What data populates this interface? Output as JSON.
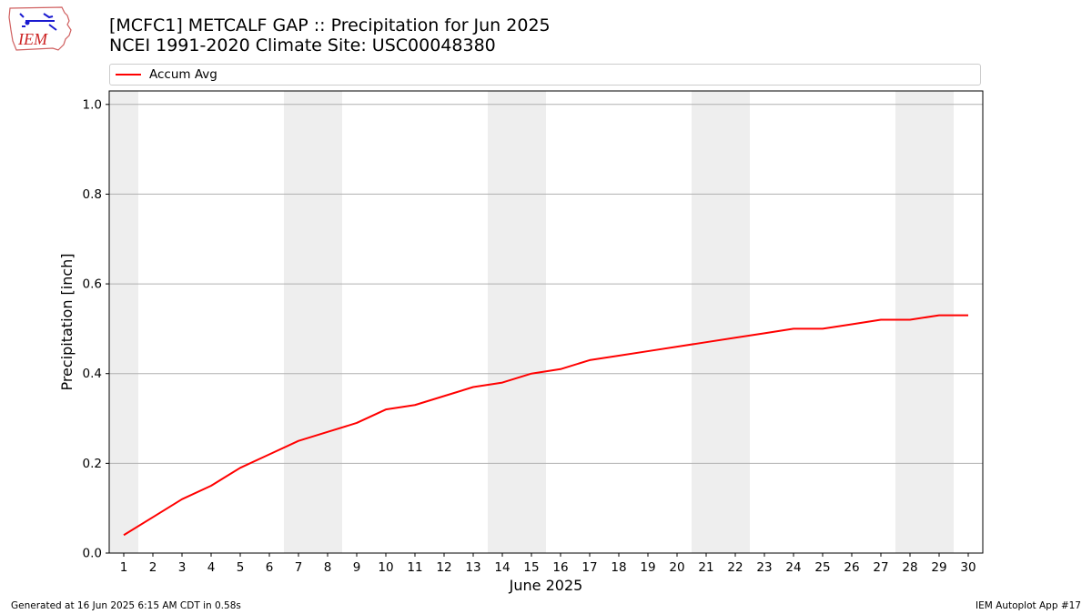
{
  "header": {
    "title_line1": "[MCFC1] METCALF GAP :: Precipitation for Jun 2025",
    "title_line2": "NCEI 1991-2020 Climate Site: USC00048380"
  },
  "logo": {
    "text": "IEM"
  },
  "footer": {
    "generated": "Generated at 16 Jun 2025 6:15 AM CDT in 0.58s",
    "app": "IEM Autoplot App #17"
  },
  "colors": {
    "series": "#ff0000",
    "weekend_band": "#eeeeee",
    "grid": "#b0b0b0"
  },
  "chart_data": {
    "type": "line",
    "title": "[MCFC1] METCALF GAP :: Precipitation for Jun 2025",
    "subtitle": "NCEI 1991-2020 Climate Site: USC00048380",
    "xlabel": "June 2025",
    "ylabel": "Precipitation [inch]",
    "xlim": [
      0.5,
      30.5
    ],
    "ylim": [
      0,
      1.03
    ],
    "x": [
      1,
      2,
      3,
      4,
      5,
      6,
      7,
      8,
      9,
      10,
      11,
      12,
      13,
      14,
      15,
      16,
      17,
      18,
      19,
      20,
      21,
      22,
      23,
      24,
      25,
      26,
      27,
      28,
      29,
      30
    ],
    "xticks": [
      "1",
      "2",
      "3",
      "4",
      "5",
      "6",
      "7",
      "8",
      "9",
      "10",
      "11",
      "12",
      "13",
      "14",
      "15",
      "16",
      "17",
      "18",
      "19",
      "20",
      "21",
      "22",
      "23",
      "24",
      "25",
      "26",
      "27",
      "28",
      "29",
      "30"
    ],
    "yticks": [
      0.0,
      0.2,
      0.4,
      0.6,
      0.8,
      1.0
    ],
    "ytick_labels": [
      "0.0",
      "0.2",
      "0.4",
      "0.6",
      "0.8",
      "1.0"
    ],
    "grid": "y",
    "legend_position": "top",
    "weekend_days": [
      1,
      7,
      8,
      14,
      15,
      21,
      22,
      28,
      29
    ],
    "series": [
      {
        "name": "Accum Avg",
        "values": [
          0.04,
          0.08,
          0.12,
          0.15,
          0.19,
          0.22,
          0.25,
          0.27,
          0.29,
          0.32,
          0.33,
          0.35,
          0.37,
          0.38,
          0.4,
          0.41,
          0.43,
          0.44,
          0.45,
          0.46,
          0.47,
          0.48,
          0.49,
          0.5,
          0.5,
          0.51,
          0.52,
          0.52,
          0.53,
          0.53
        ]
      }
    ]
  }
}
